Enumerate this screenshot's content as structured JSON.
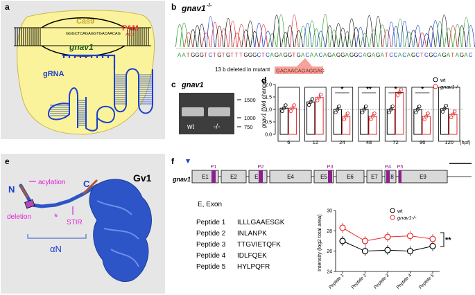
{
  "panels": {
    "a": {
      "letter": "a",
      "cas9": "Cas9",
      "pam": "PAM",
      "pam_seq": "AGG",
      "gene": "gnav1",
      "dna_seq": "GGGCTCAGAGGTGACAACAG",
      "grna": "gRNA"
    },
    "b": {
      "letter": "b",
      "title": "gnav1",
      "title_sup": "-/-",
      "sequence": "AATGGGTCTGTGTTTGGGCTCAGAGGTGACAACAGAGGAGGCAGAGATCCACAGCTCGCAGATAGAC",
      "deletion_label": "13 b deleted in mutant",
      "deleted_seq": "GACAACAGAGGAG"
    },
    "c": {
      "letter": "c",
      "title": "gnav1",
      "markers": [
        "1500",
        "1000",
        "750"
      ],
      "lanes": [
        "wt",
        "-/-"
      ]
    },
    "d": {
      "letter": "d",
      "legend": [
        "wt",
        "gnav1-/-"
      ],
      "ylabel_gene": "gnav1",
      "ylabel_rest": "(fold change)",
      "xunit": "(hpf)",
      "color_wt": "#000000",
      "color_mut": "#e8282a"
    },
    "e": {
      "letter": "e",
      "title": "Gv1",
      "n_term": "N",
      "c_term": "C",
      "acylation": "acylation",
      "deletion": "deletion",
      "asterisk": "*",
      "stir": "STIR",
      "alpha_n": "αN"
    },
    "f": {
      "letter": "f",
      "gene": "gnav1",
      "exons": [
        "E1",
        "E2",
        "E3",
        "E4",
        "E5",
        "E6",
        "E7",
        "E8",
        "E9"
      ],
      "peptide_marks": [
        "P1",
        "P2",
        "P3",
        "P4",
        "P5"
      ],
      "exon_caption": "E, Exon",
      "peptides": [
        {
          "name": "Peptide 1",
          "seq": "ILLLGAAESGK"
        },
        {
          "name": "Peptide 2",
          "seq": "INLANPK"
        },
        {
          "name": "Peptide 3",
          "seq": "TTGVIETQFK"
        },
        {
          "name": "Peptide 4",
          "seq": "IDLFQEK"
        },
        {
          "name": "Peptide 5",
          "seq": "HYLPQFR"
        }
      ],
      "legend": [
        "wt",
        "gnav1-/-"
      ],
      "ylabel": "Intensity (log2 total area)",
      "significance": "**"
    }
  },
  "chart_data": [
    {
      "type": "bar",
      "panel": "d",
      "xlabel": "(hpf)",
      "ylabel": "gnav1 (fold change)",
      "ylim": [
        0,
        2
      ],
      "yticks": [
        0.0,
        0.5,
        1.0,
        1.5,
        2.0
      ],
      "categories": [
        "6",
        "12",
        "24",
        "48",
        "72",
        "96",
        "120"
      ],
      "series": [
        {
          "name": "wt",
          "values": [
            1.05,
            1.3,
            1.0,
            1.0,
            1.0,
            1.0,
            1.03
          ]
        },
        {
          "name": "gnav1-/-",
          "values": [
            1.05,
            1.48,
            0.72,
            0.72,
            1.68,
            0.72,
            0.8
          ]
        }
      ],
      "significance": [
        "",
        "",
        "*",
        "**",
        "*",
        "*",
        ""
      ]
    },
    {
      "type": "line",
      "panel": "f",
      "ylabel": "Intensity (log2 total area)",
      "ylim": [
        24,
        30
      ],
      "yticks": [
        24,
        26,
        28,
        30
      ],
      "categories": [
        "Peptide 1",
        "Peptide 2",
        "Peptide 3",
        "Peptide 4",
        "Peptide 5"
      ],
      "series": [
        {
          "name": "wt",
          "values": [
            27.0,
            26.0,
            26.1,
            26.0,
            26.5
          ]
        },
        {
          "name": "gnav1-/-",
          "values": [
            28.3,
            27.0,
            27.4,
            27.5,
            27.2
          ]
        }
      ],
      "significance": "**"
    }
  ]
}
